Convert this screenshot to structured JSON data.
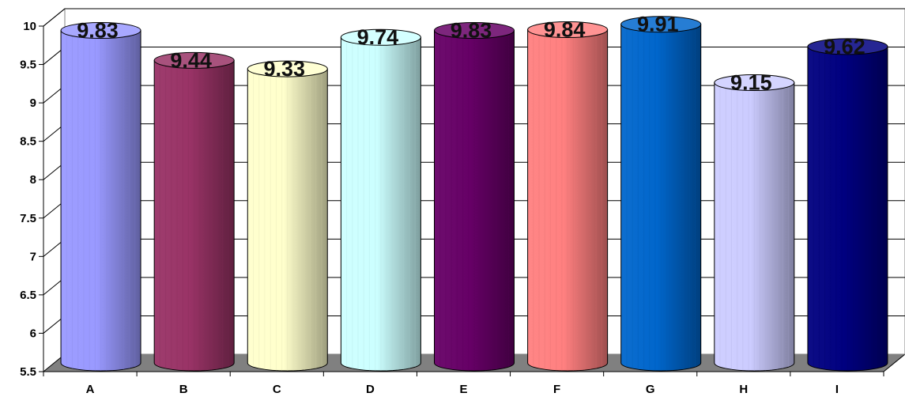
{
  "chart_data": {
    "type": "bar",
    "style": "3d-cylinder",
    "categories": [
      "A",
      "B",
      "C",
      "D",
      "E",
      "F",
      "G",
      "H",
      "I"
    ],
    "values": [
      9.83,
      9.44,
      9.33,
      9.74,
      9.83,
      9.84,
      9.91,
      9.15,
      9.62
    ],
    "data_labels": [
      "9.83",
      "9.44",
      "9.33",
      "9.74",
      "9.83",
      "9.84",
      "9.91",
      "9.15",
      "9.62"
    ],
    "yticks": [
      "5.5",
      "6",
      "6.5",
      "7",
      "7.5",
      "8",
      "8.5",
      "9",
      "9.5",
      "10"
    ],
    "ylim": [
      5.5,
      10
    ],
    "ytick_step": 0.5,
    "grid": true,
    "legend": "none",
    "colors": [
      "#9999ff",
      "#993366",
      "#ffffcc",
      "#ccffff",
      "#660066",
      "#ff8080",
      "#0066cc",
      "#ccccff",
      "#000080"
    ],
    "wall_color": "#ffffff",
    "floor_color": "#808080"
  }
}
